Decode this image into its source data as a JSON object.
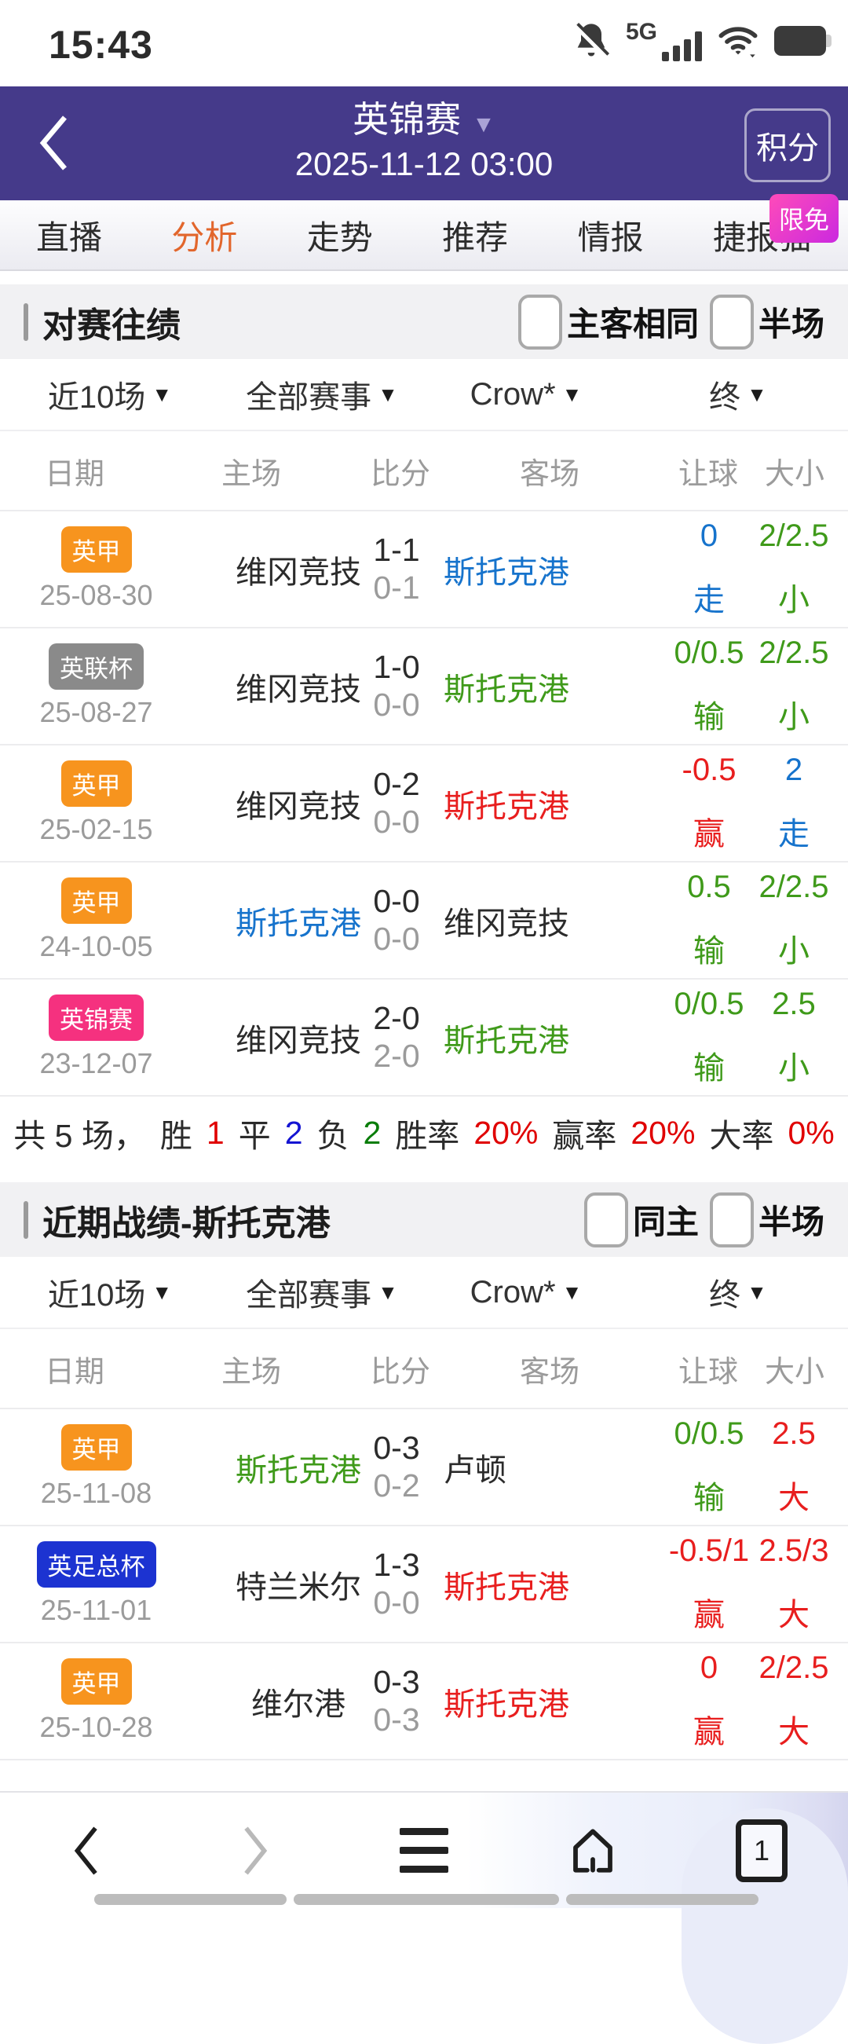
{
  "colors": {
    "dark": "#2b2b2b",
    "gray": "#9b9b9b",
    "blue": "#1673cc",
    "green": "#3f9a1a",
    "red": "#e81e1e",
    "sum_red": "#e00000",
    "sum_blue": "#1414d2",
    "sum_green": "#0a7d0a",
    "header_purple": "#453a8a",
    "tab_active_orange": "#e2662c",
    "badge_orange": "#f7941e",
    "badge_gray": "#8a8a8a",
    "badge_pink": "#f5317f",
    "badge_blue": "#1c33d1"
  },
  "ui": {
    "dropdown_icon": "▼"
  },
  "status_bar": {
    "time": "15:43",
    "network_label": "5G"
  },
  "header": {
    "title": "英锦赛",
    "datetime": "2025-11-12 03:00",
    "action_button": "积分"
  },
  "tabs": {
    "promo_badge": "限免",
    "items": [
      {
        "label": "直播",
        "active": false
      },
      {
        "label": "分析",
        "active": true
      },
      {
        "label": "走势",
        "active": false
      },
      {
        "label": "推荐",
        "active": false
      },
      {
        "label": "情报",
        "active": false
      },
      {
        "label": "捷报猫",
        "active": false
      }
    ]
  },
  "sections": [
    {
      "title": "对赛往绩",
      "checkboxes": [
        "主客相同",
        "半场"
      ],
      "filters": [
        "近10场",
        "全部赛事",
        "Crow*",
        "终"
      ],
      "columns": [
        "日期",
        "主场",
        "比分",
        "客场",
        "让球",
        "大小"
      ],
      "rows": [
        {
          "league": "英甲",
          "league_bg": "#f7941e",
          "date": "25-08-30",
          "home": "维冈竞技",
          "home_color": "dark",
          "score_full": "1-1",
          "score_half": "0-1",
          "away": "斯托克港",
          "away_color": "blue",
          "handicap": "0",
          "handicap_result": "走",
          "handicap_color": "blue",
          "ou": "2/2.5",
          "ou_result": "小",
          "ou_color": "green"
        },
        {
          "league": "英联杯",
          "league_bg": "#8a8a8a",
          "date": "25-08-27",
          "home": "维冈竞技",
          "home_color": "dark",
          "score_full": "1-0",
          "score_half": "0-0",
          "away": "斯托克港",
          "away_color": "green",
          "handicap": "0/0.5",
          "handicap_result": "输",
          "handicap_color": "green",
          "ou": "2/2.5",
          "ou_result": "小",
          "ou_color": "green"
        },
        {
          "league": "英甲",
          "league_bg": "#f7941e",
          "date": "25-02-15",
          "home": "维冈竞技",
          "home_color": "dark",
          "score_full": "0-2",
          "score_half": "0-0",
          "away": "斯托克港",
          "away_color": "red",
          "handicap": "-0.5",
          "handicap_result": "赢",
          "handicap_color": "red",
          "ou": "2",
          "ou_result": "走",
          "ou_color": "blue"
        },
        {
          "league": "英甲",
          "league_bg": "#f7941e",
          "date": "24-10-05",
          "home": "斯托克港",
          "home_color": "blue",
          "score_full": "0-0",
          "score_half": "0-0",
          "away": "维冈竞技",
          "away_color": "dark",
          "handicap": "0.5",
          "handicap_result": "输",
          "handicap_color": "green",
          "ou": "2/2.5",
          "ou_result": "小",
          "ou_color": "green"
        },
        {
          "league": "英锦赛",
          "league_bg": "#f5317f",
          "date": "23-12-07",
          "home": "维冈竞技",
          "home_color": "dark",
          "score_full": "2-0",
          "score_half": "2-0",
          "away": "斯托克港",
          "away_color": "green",
          "handicap": "0/0.5",
          "handicap_result": "输",
          "handicap_color": "green",
          "ou": "2.5",
          "ou_result": "小",
          "ou_color": "green"
        }
      ],
      "summary": [
        {
          "t": "共 5 场，",
          "c": "dark"
        },
        {
          "t": "胜",
          "c": "dark"
        },
        {
          "t": "1",
          "c": "sum_red"
        },
        {
          "t": "平",
          "c": "dark"
        },
        {
          "t": "2",
          "c": "sum_blue"
        },
        {
          "t": "负",
          "c": "dark"
        },
        {
          "t": "2",
          "c": "sum_green"
        },
        {
          "t": "胜率",
          "c": "dark"
        },
        {
          "t": "20%",
          "c": "sum_red"
        },
        {
          "t": "赢率",
          "c": "dark"
        },
        {
          "t": "20%",
          "c": "sum_red"
        },
        {
          "t": "大率",
          "c": "dark"
        },
        {
          "t": "0%",
          "c": "sum_red"
        }
      ]
    },
    {
      "title": "近期战绩-斯托克港",
      "checkboxes": [
        "同主",
        "半场"
      ],
      "filters": [
        "近10场",
        "全部赛事",
        "Crow*",
        "终"
      ],
      "columns": [
        "日期",
        "主场",
        "比分",
        "客场",
        "让球",
        "大小"
      ],
      "rows": [
        {
          "league": "英甲",
          "league_bg": "#f7941e",
          "date": "25-11-08",
          "home": "斯托克港",
          "home_color": "green",
          "score_full": "0-3",
          "score_half": "0-2",
          "away": "卢顿",
          "away_color": "dark",
          "handicap": "0/0.5",
          "handicap_result": "输",
          "handicap_color": "green",
          "ou": "2.5",
          "ou_result": "大",
          "ou_color": "red"
        },
        {
          "league": "英足总杯",
          "league_bg": "#1c33d1",
          "date": "25-11-01",
          "home": "特兰米尔",
          "home_color": "dark",
          "score_full": "1-3",
          "score_half": "0-0",
          "away": "斯托克港",
          "away_color": "red",
          "handicap": "-0.5/1",
          "handicap_result": "赢",
          "handicap_color": "red",
          "ou": "2.5/3",
          "ou_result": "大",
          "ou_color": "red"
        },
        {
          "league": "英甲",
          "league_bg": "#f7941e",
          "date": "25-10-28",
          "home": "维尔港",
          "home_color": "dark",
          "score_full": "0-3",
          "score_half": "0-3",
          "away": "斯托克港",
          "away_color": "red",
          "handicap": "0",
          "handicap_result": "赢",
          "handicap_color": "red",
          "ou": "2/2.5",
          "ou_result": "大",
          "ou_color": "red"
        }
      ],
      "summary": []
    }
  ],
  "bottom_nav": {
    "tab_count": "1"
  }
}
